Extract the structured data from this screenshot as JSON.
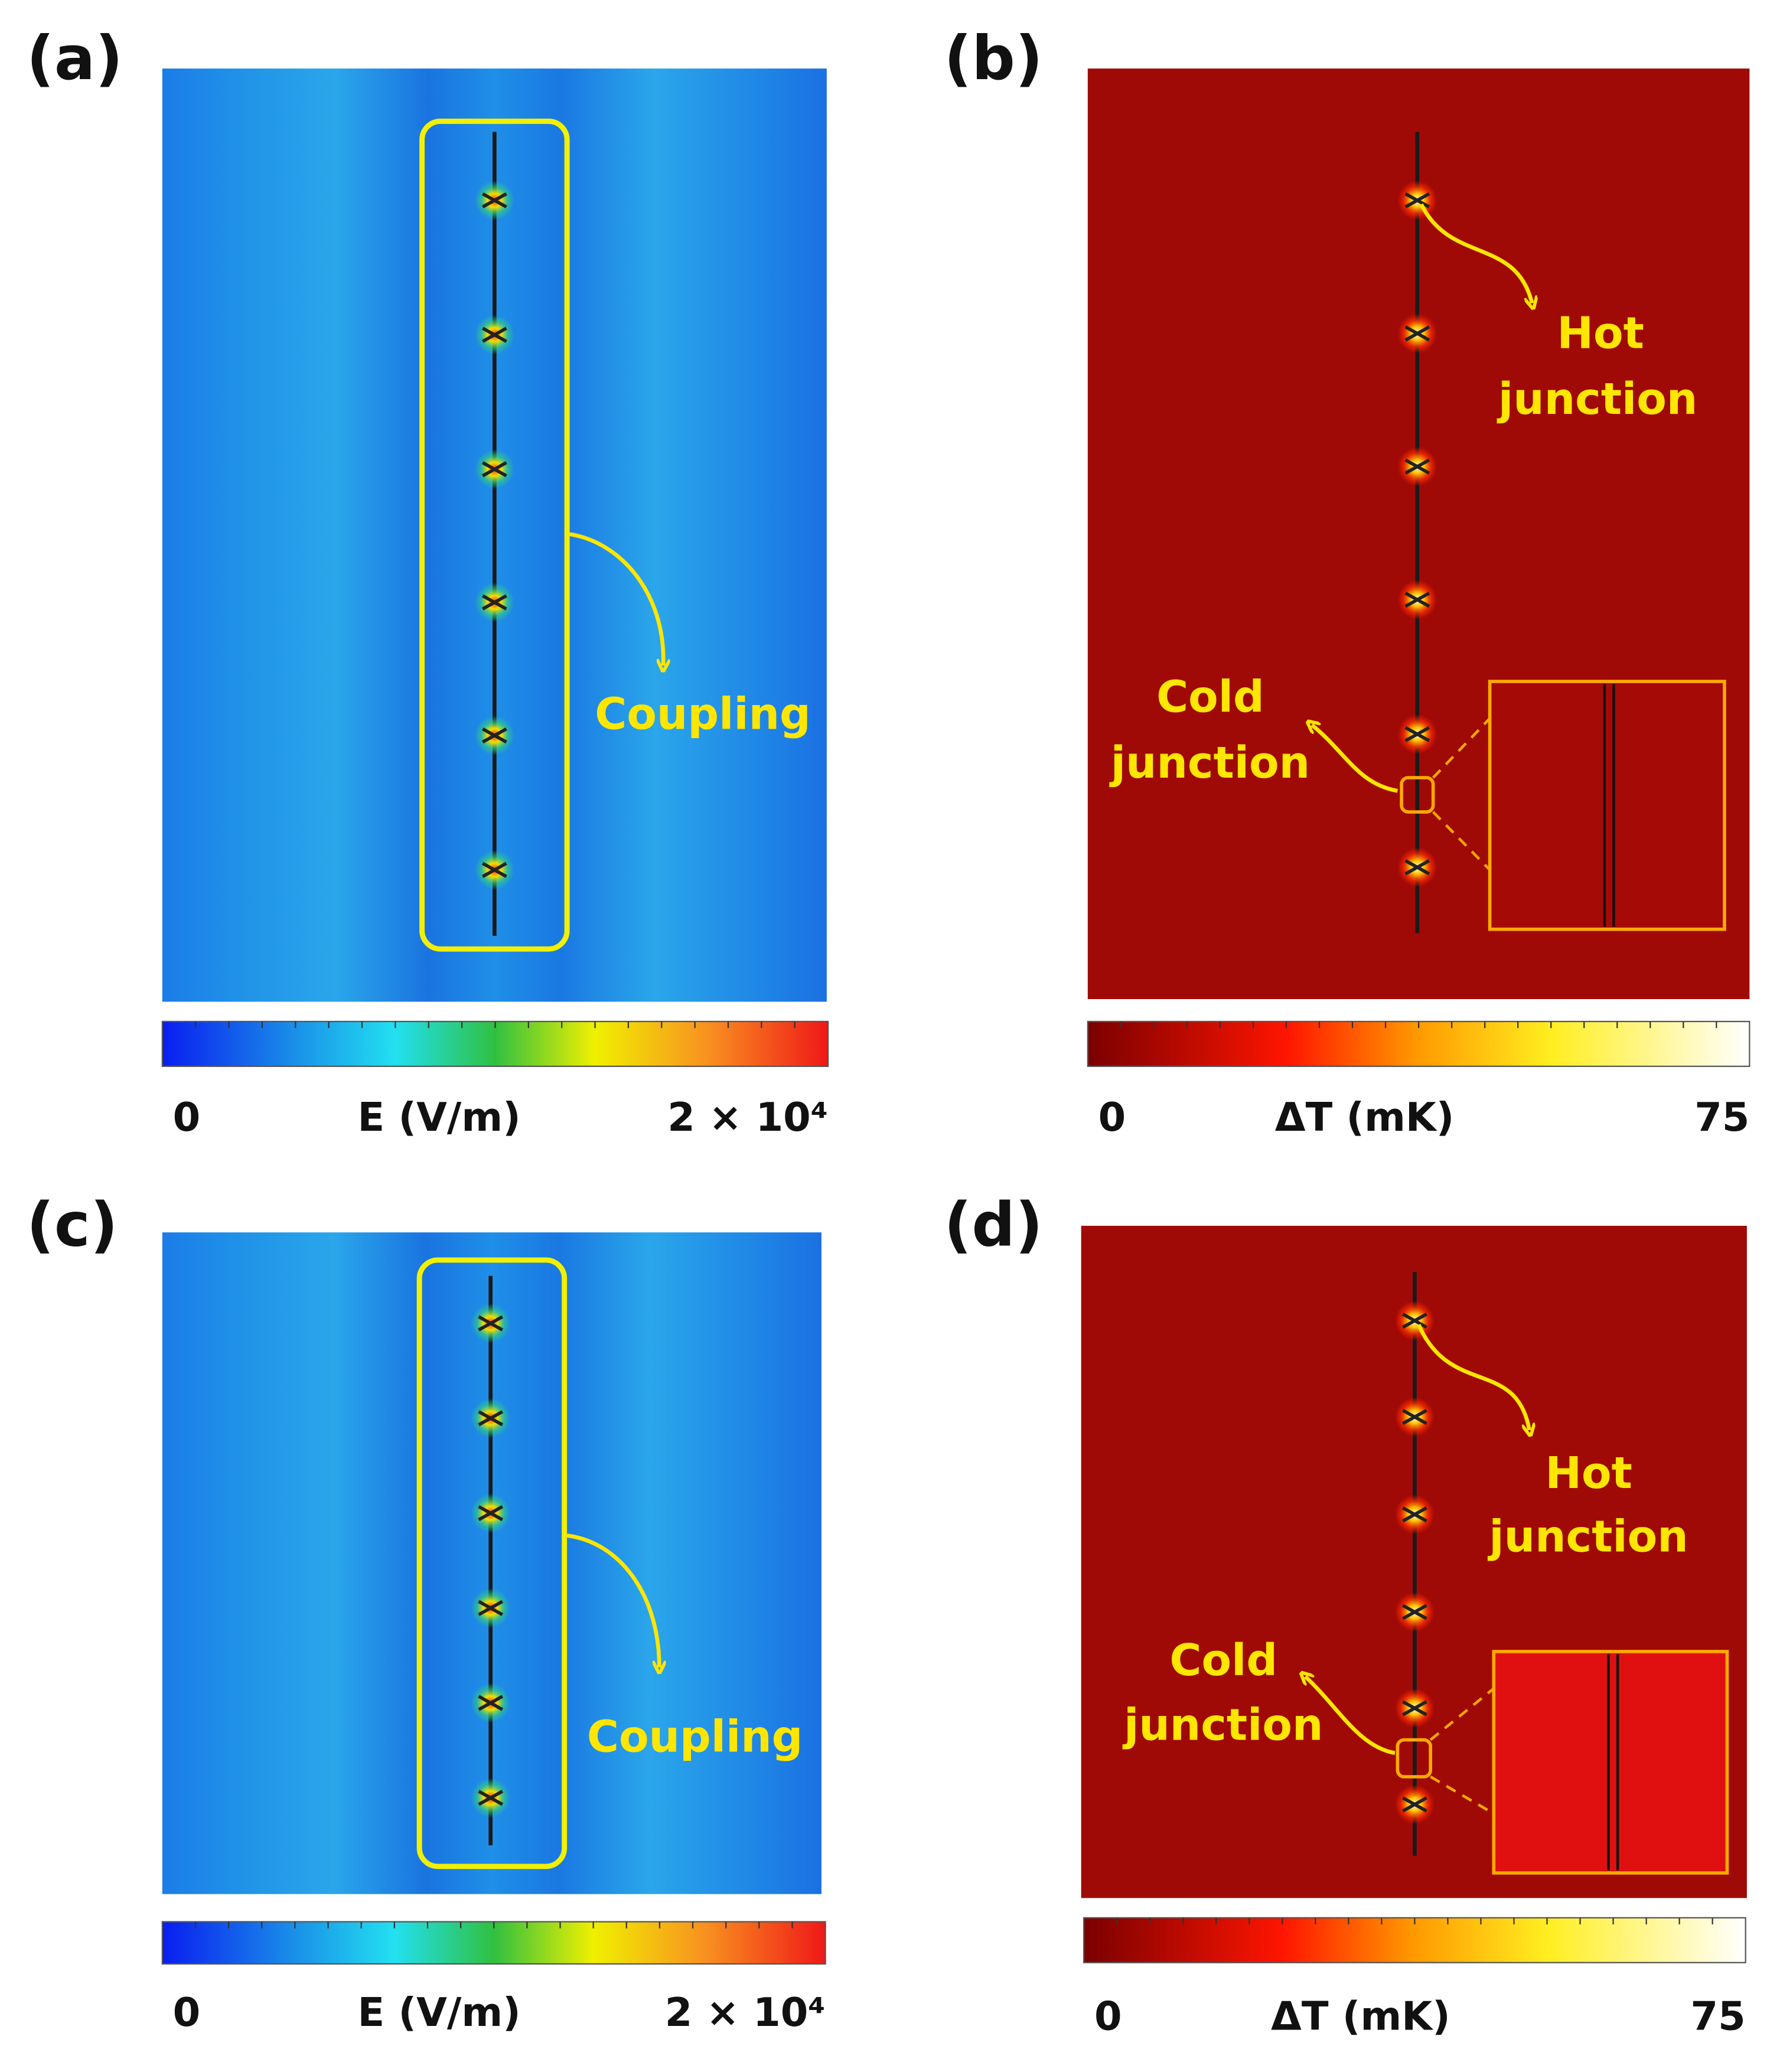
{
  "panels": [
    {
      "label": "(a)",
      "colorbar": {
        "min": "0",
        "title": "E (V/m)",
        "max": "2 × 10⁴"
      },
      "annotations": [
        [
          "Coupling"
        ]
      ]
    },
    {
      "label": "(b)",
      "colorbar": {
        "min": "0",
        "title": "ΔT (mK)",
        "max": "75"
      },
      "annotations": [
        [
          "Hot",
          "junction"
        ],
        [
          "Cold",
          "junction"
        ]
      ]
    },
    {
      "label": "(c)",
      "colorbar": {
        "min": "0",
        "title": "E (V/m)",
        "max": "2 × 10⁴"
      },
      "annotations": [
        [
          "Coupling"
        ]
      ]
    },
    {
      "label": "(d)",
      "colorbar": {
        "min": "0",
        "title": "ΔT (mK)",
        "max": "75"
      },
      "annotations": [
        [
          "Hot",
          "junction"
        ],
        [
          "Cold",
          "junction"
        ]
      ]
    }
  ]
}
